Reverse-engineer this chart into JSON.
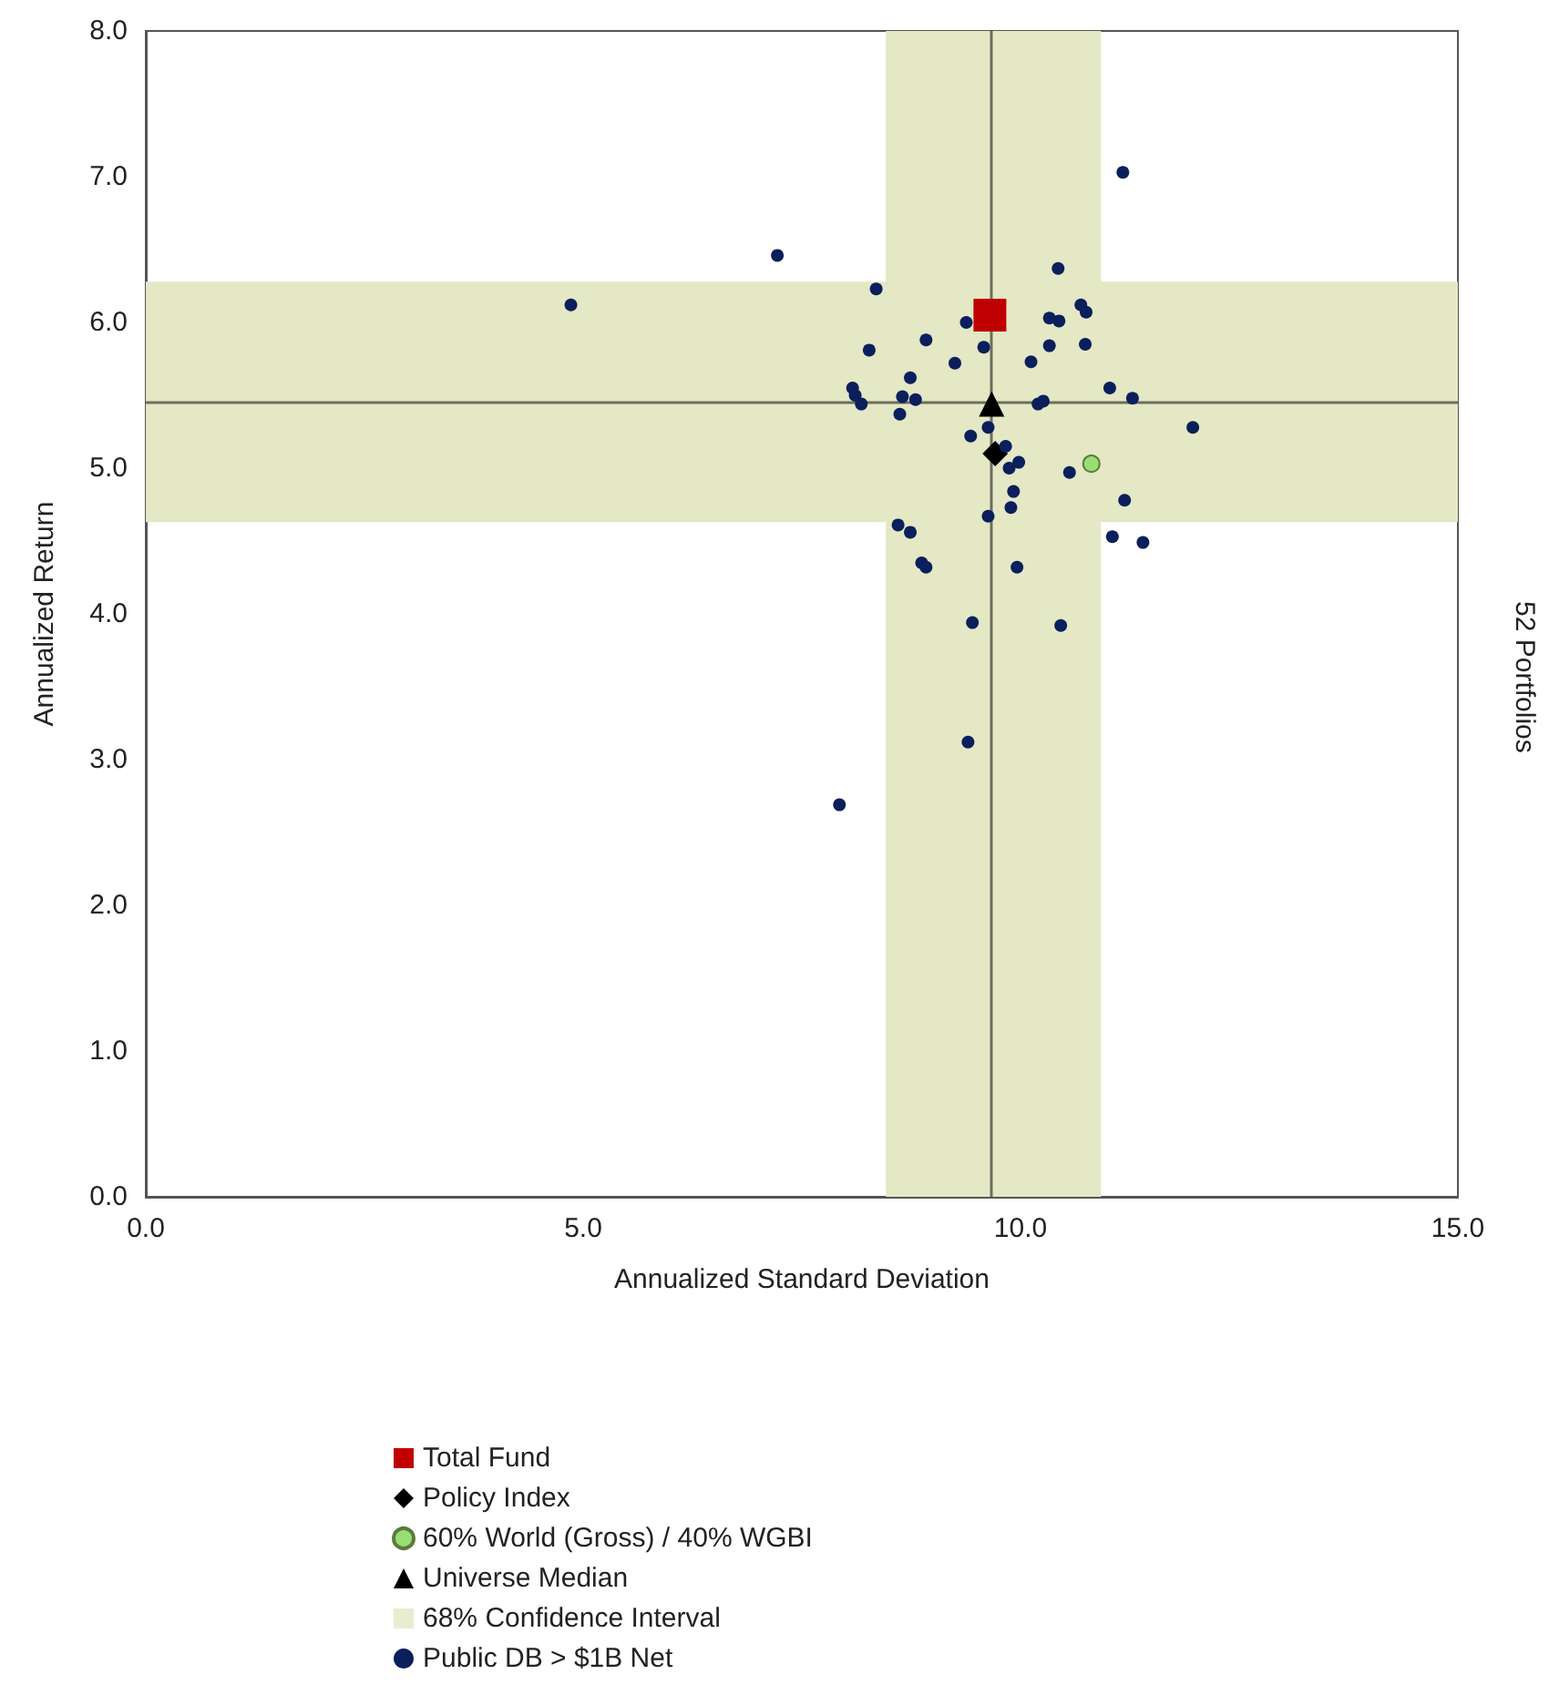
{
  "chart_data": {
    "type": "scatter",
    "xlabel": "Annualized Standard Deviation",
    "ylabel": "Annualized Return",
    "annotations": [
      "52 Portfolios"
    ],
    "xlim": [
      0,
      15
    ],
    "ylim": [
      0,
      8
    ],
    "xticks": [
      {
        "value": 0,
        "label": "0.0"
      },
      {
        "value": 5,
        "label": "5.0"
      },
      {
        "value": 10,
        "label": "10.0"
      },
      {
        "value": 15,
        "label": "15.0"
      }
    ],
    "yticks": [
      {
        "value": 0,
        "label": "0.0"
      },
      {
        "value": 1,
        "label": "1.0"
      },
      {
        "value": 2,
        "label": "2.0"
      },
      {
        "value": 3,
        "label": "3.0"
      },
      {
        "value": 4,
        "label": "4.0"
      },
      {
        "value": 5,
        "label": "5.0"
      },
      {
        "value": 6,
        "label": "6.0"
      },
      {
        "value": 7,
        "label": "7.0"
      },
      {
        "value": 8,
        "label": "8.0"
      }
    ],
    "grid": false,
    "legend": "bottom",
    "bands": [
      {
        "axis": "x",
        "from": 8.46,
        "to": 10.92,
        "label": "68% Confidence Interval",
        "color": "#e4e8c4"
      },
      {
        "axis": "y",
        "from": 4.63,
        "to": 6.28,
        "color": "#e4e8c4"
      }
    ],
    "ref_lines": [
      {
        "axis": "x",
        "value": 9.67,
        "color": "#6e6e5e"
      },
      {
        "axis": "y",
        "value": 5.45,
        "color": "#6e6e5e"
      }
    ],
    "series": [
      {
        "name": "Total Fund",
        "color": "#c00000",
        "marker": "square",
        "x": [
          9.65
        ],
        "values": [
          6.05
        ]
      },
      {
        "name": "Policy Index",
        "color": "#000000",
        "marker": "diamond",
        "x": [
          9.71
        ],
        "values": [
          5.1
        ]
      },
      {
        "name": "60% World (Gross) / 40% WGBI",
        "color": "#99dd77",
        "marker": "circle",
        "x": [
          10.81
        ],
        "values": [
          5.03
        ]
      },
      {
        "name": "Universe Median",
        "color": "#000000",
        "marker": "triangle",
        "x": [
          9.67
        ],
        "values": [
          5.44
        ]
      },
      {
        "name": "Public DB > $1B Net",
        "color": "#0a1f5c",
        "marker": "circle",
        "x": [
          4.86,
          7.22,
          11.17,
          10.43,
          8.35,
          10.69,
          10.75,
          10.33,
          10.44,
          9.38,
          8.92,
          8.27,
          9.58,
          10.33,
          10.74,
          9.25,
          10.12,
          8.74,
          8.08,
          8.11,
          8.18,
          8.65,
          8.8,
          8.62,
          11.02,
          11.28,
          10.2,
          10.26,
          11.97,
          9.43,
          9.63,
          9.83,
          9.98,
          9.87,
          10.56,
          9.92,
          9.89,
          9.63,
          11.19,
          8.6,
          8.74,
          8.87,
          8.92,
          11.05,
          11.4,
          9.96,
          9.45,
          10.46,
          9.4,
          7.93
        ],
        "values": [
          6.12,
          6.46,
          7.03,
          6.37,
          6.23,
          6.12,
          6.07,
          6.03,
          6.01,
          6.0,
          5.88,
          5.81,
          5.83,
          5.84,
          5.85,
          5.72,
          5.73,
          5.62,
          5.55,
          5.5,
          5.44,
          5.49,
          5.47,
          5.37,
          5.55,
          5.48,
          5.44,
          5.46,
          5.28,
          5.22,
          5.28,
          5.15,
          5.04,
          5.0,
          4.97,
          4.84,
          4.73,
          4.67,
          4.78,
          4.61,
          4.56,
          4.35,
          4.32,
          4.53,
          4.49,
          4.32,
          3.94,
          3.92,
          3.12,
          2.69
        ]
      }
    ]
  }
}
